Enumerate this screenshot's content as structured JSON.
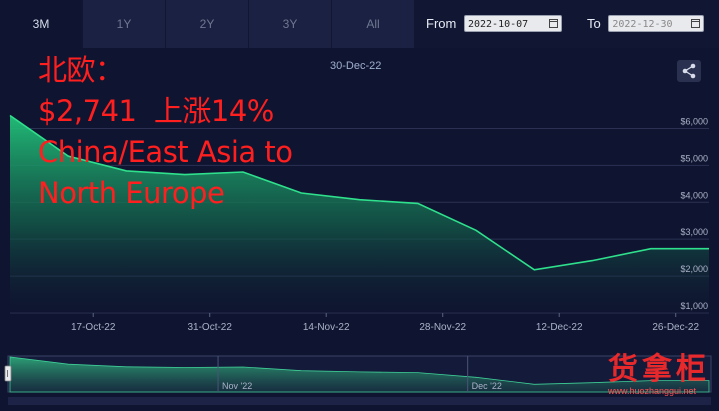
{
  "toolbar": {
    "ranges": [
      "3M",
      "1Y",
      "2Y",
      "3Y",
      "All"
    ],
    "active_range": "3M",
    "from_label": "From",
    "from_value": "2022-10-07",
    "to_label": "To",
    "to_value": "2022-12-30"
  },
  "tooltip_date": "30-Dec-22",
  "overlay_text": "北欧：\n$2,741  上涨14%\nChina/East Asia to\nNorth Europe",
  "watermark": {
    "text": "货拿柜",
    "url": "www.huozhanggui.net"
  },
  "icons": {
    "share": "share-icon",
    "calendar": "calendar-icon",
    "navigator_handle": "navigator-handle-icon"
  },
  "colors": {
    "line": "#2fe08c",
    "background": "#0f1530",
    "overlay_text": "#ff1f1f"
  },
  "chart_data": {
    "type": "area",
    "x": [
      "2022-10-07",
      "2022-10-14",
      "2022-10-21",
      "2022-10-28",
      "2022-11-04",
      "2022-11-11",
      "2022-11-18",
      "2022-11-25",
      "2022-12-02",
      "2022-12-09",
      "2022-12-16",
      "2022-12-23",
      "2022-12-30"
    ],
    "values": [
      6350,
      5250,
      4850,
      4750,
      4820,
      4250,
      4070,
      3970,
      3240,
      2170,
      2420,
      2741,
      2741
    ],
    "ylim": [
      1000,
      6500
    ],
    "yticks": [
      "$1,000",
      "$2,000",
      "$3,000",
      "$4,000",
      "$5,000",
      "$6,000"
    ],
    "ytick_values": [
      1000,
      2000,
      3000,
      4000,
      5000,
      6000
    ],
    "xticks": [
      "17-Oct-22",
      "31-Oct-22",
      "14-Nov-22",
      "28-Nov-22",
      "12-Dec-22",
      "26-Dec-22"
    ],
    "xtick_dates": [
      "2022-10-17",
      "2022-10-31",
      "2022-11-14",
      "2022-11-28",
      "2022-12-12",
      "2022-12-26"
    ],
    "navigator_labels": [
      "Nov '22",
      "Dec '22"
    ],
    "navigator_label_dates": [
      "2022-11-01",
      "2022-12-01"
    ],
    "grid": true
  }
}
